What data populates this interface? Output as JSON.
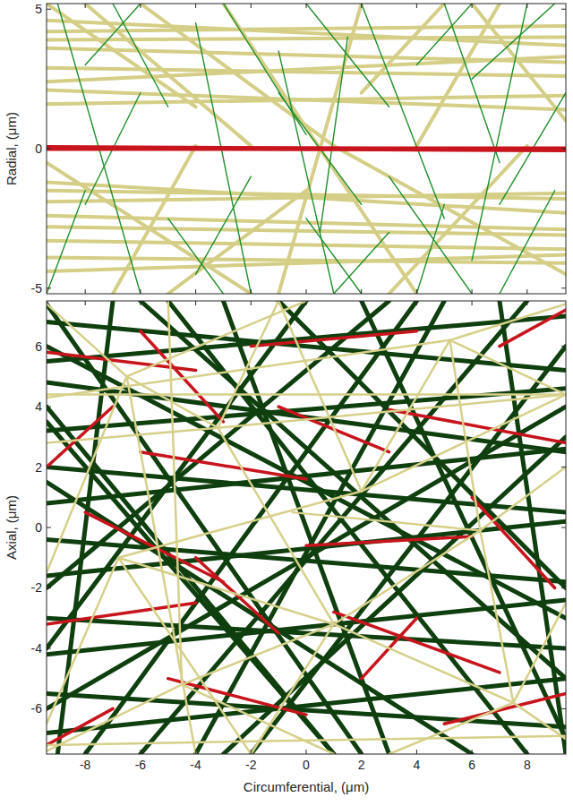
{
  "chart_data": [
    {
      "type": "line",
      "ylabel": "Radial, (μm)",
      "xlim": [
        -9.4,
        9.4
      ],
      "ylim": [
        -5.2,
        5.2
      ],
      "xticks": [
        -8,
        -6,
        -4,
        -2,
        0,
        2,
        4,
        6,
        8
      ],
      "yticks": [
        -5,
        0,
        5
      ],
      "tick_labels": "y",
      "series": [
        {
          "color": "#d4ce86",
          "line_style": "solid",
          "x": [
            -9.4,
            9.4,
            null,
            -9.4,
            9.4,
            null,
            -9.4,
            9.4,
            null,
            -9.4,
            9.4,
            null,
            -9.4,
            9.4,
            null,
            -9.4,
            9.4,
            null,
            -9.4,
            9.4,
            null,
            -9.4,
            9.4,
            null,
            -9.4,
            9.4,
            null,
            -9.4,
            9.4,
            null,
            -9.4,
            9.4,
            null,
            -9.4,
            9.4,
            null,
            -9.4,
            9.4,
            null,
            -9.4,
            9.4,
            null,
            -9.4,
            9.4,
            null,
            -9.4,
            9.4,
            null,
            -9.4,
            -4,
            null,
            -6,
            1,
            null,
            -3,
            4,
            null,
            2,
            -1,
            null,
            6,
            9.4,
            null,
            -9.4,
            -2,
            null,
            1,
            9.4,
            null,
            -7,
            -4,
            null,
            4,
            7,
            null,
            -2,
            -8,
            null,
            3,
            8,
            null,
            -5,
            0,
            null,
            5,
            2
          ],
          "values": [
            4.2,
            4.4,
            null,
            3.9,
            4.0,
            null,
            3.6,
            3.1,
            null,
            2.9,
            2.6,
            null,
            4.6,
            3.7,
            null,
            2.4,
            3.3,
            null,
            1.6,
            1.9,
            null,
            2.1,
            1.4,
            null,
            -1.5,
            -1.8,
            null,
            -1.9,
            -1.6,
            null,
            -2.8,
            -3.1,
            null,
            -3.3,
            -3.6,
            null,
            -3.9,
            -4.1,
            null,
            -2.4,
            -2.9,
            null,
            -4.4,
            -3.8,
            null,
            -1.2,
            -2.3,
            null,
            5.2,
            1.5,
            null,
            5.2,
            0.1,
            null,
            5.2,
            -5.2,
            null,
            5.2,
            -5.2,
            null,
            5.2,
            1.0,
            null,
            -0.5,
            -5.2,
            null,
            0.1,
            -4.5,
            null,
            -5.2,
            0.1,
            null,
            0.1,
            5.2,
            null,
            0.1,
            5.2,
            null,
            -5.2,
            0.1,
            null,
            -5.2,
            -1.5,
            null,
            5.2,
            2.0
          ]
        },
        {
          "color": "#1f8f2a",
          "line_style": "solid",
          "x": [
            -9,
            -6,
            null,
            -7,
            -5,
            null,
            -4,
            -2,
            null,
            -3,
            0,
            null,
            -1,
            1,
            null,
            0,
            3,
            null,
            1.5,
            0.5,
            null,
            2,
            5,
            null,
            3,
            6,
            null,
            4,
            6,
            null,
            5,
            7,
            null,
            6,
            9,
            null,
            7,
            9.4,
            null,
            8,
            6,
            null,
            -8,
            -9.4,
            null,
            -6,
            -8,
            null,
            -5,
            -3,
            null,
            -2,
            -4,
            null,
            0,
            2,
            null,
            3,
            1,
            null,
            5,
            4,
            null,
            9,
            7,
            null,
            -1,
            2,
            null,
            -8,
            -6
          ],
          "values": [
            5.2,
            -5.2,
            null,
            5.2,
            1.5,
            null,
            4.5,
            -5.2,
            null,
            5.2,
            0.5,
            null,
            3.5,
            -5.2,
            null,
            5.2,
            1.5,
            null,
            4.0,
            -3.0,
            null,
            5.2,
            -2.5,
            null,
            -1.0,
            -5.2,
            null,
            3.0,
            5.2,
            null,
            5.2,
            -0.5,
            null,
            2.5,
            5.2,
            null,
            -2.0,
            2.0,
            null,
            5.2,
            -4.0,
            null,
            -1.5,
            -5.2,
            null,
            2.0,
            -2.0,
            null,
            -2.5,
            -5.2,
            null,
            -1.0,
            -4.5,
            null,
            -2.5,
            -5.2,
            null,
            -3.0,
            -5.2,
            null,
            -2.0,
            -5.2,
            null,
            -1.5,
            -5.2,
            null,
            2.0,
            -2.0,
            null,
            3.0,
            5.2
          ]
        },
        {
          "color": "#c8141c",
          "line_style": "solid",
          "x": [
            -9.4,
            9.4,
            null,
            -9.4,
            9.4
          ],
          "values": [
            0,
            0,
            null,
            0.05,
            -0.05
          ]
        }
      ]
    },
    {
      "type": "line",
      "xlabel": "Circumferential, (μm)",
      "ylabel": "Axial, (μm)",
      "xlim": [
        -9.4,
        9.4
      ],
      "ylim": [
        -7.5,
        7.5
      ],
      "xticks": [
        -8,
        -6,
        -4,
        -2,
        0,
        2,
        4,
        6,
        8
      ],
      "yticks": [
        -6,
        -4,
        -2,
        0,
        2,
        4,
        6
      ],
      "tick_labels": true,
      "series": [
        {
          "color": "#0f3f0f",
          "line_style": "solid",
          "x": [
            -9.4,
            9.4,
            null,
            -9.4,
            9.4,
            null,
            -9.4,
            9.4,
            null,
            -9.4,
            9.4,
            null,
            -9.4,
            9.4,
            null,
            -9.4,
            9.4,
            null,
            -9.4,
            9.4,
            null,
            -9.4,
            9.4,
            null,
            -9.4,
            9.4,
            null,
            -9.4,
            9.4,
            null,
            -9.4,
            9.4,
            null,
            -9.4,
            9.4,
            null,
            -9.4,
            2,
            null,
            -6,
            9.4,
            null,
            -9.4,
            3,
            null,
            -2,
            9.4,
            null,
            -8,
            4,
            null,
            0,
            -9.4,
            null,
            5,
            -4,
            null,
            9.4,
            -3,
            null,
            -9.4,
            6,
            null,
            -5,
            8,
            null,
            7,
            9.4,
            null,
            -7,
            -9,
            null,
            1,
            -9.4,
            null,
            9.4,
            -1,
            null,
            -3,
            3,
            null,
            -9.4,
            9.4,
            null,
            -9.4,
            9.4,
            null,
            -6,
            8,
            null,
            2,
            9.4,
            null,
            -9.4,
            1
          ],
          "values": [
            6.8,
            5.2,
            null,
            5.5,
            7.0,
            null,
            4.8,
            2.5,
            null,
            3.2,
            4.6,
            null,
            2.0,
            0.5,
            null,
            0.8,
            2.6,
            null,
            -0.4,
            -1.8,
            null,
            -1.6,
            0.2,
            null,
            -3.0,
            -4.0,
            null,
            -4.2,
            -2.4,
            null,
            -5.5,
            -6.6,
            null,
            -6.8,
            -5.0,
            null,
            7.4,
            -7.5,
            null,
            7.5,
            -5,
            null,
            -2,
            7.5,
            null,
            -7.5,
            6,
            null,
            -7.5,
            7.5,
            null,
            7.5,
            -4,
            null,
            7.5,
            -7.5,
            null,
            3,
            -7.5,
            null,
            1.5,
            -7.5,
            null,
            7.5,
            -7.5,
            null,
            7.5,
            -7.5,
            null,
            7.5,
            -7.5,
            null,
            -7.5,
            3.5,
            null,
            -2,
            7.5,
            null,
            7.5,
            -7.5,
            null,
            6,
            -3,
            null,
            -6,
            4,
            null,
            -7.5,
            7.5,
            null,
            7.5,
            -7,
            null,
            4,
            -7.5
          ]
        },
        {
          "color": "#c8141c",
          "line_style": "solid",
          "x": [
            -9.4,
            -4,
            null,
            -6,
            0,
            null,
            -2,
            4,
            null,
            3,
            9.4,
            null,
            -8,
            -3,
            null,
            0,
            6,
            null,
            -9.4,
            -4,
            null,
            1,
            7,
            null,
            -5,
            0,
            null,
            5,
            9.4,
            null,
            -7,
            -9.4,
            null,
            6,
            9,
            null,
            -1,
            3,
            null,
            -4,
            -1,
            null,
            7,
            9.4,
            null,
            -9.4,
            -7,
            null,
            2,
            4,
            null,
            -3,
            -6
          ],
          "values": [
            5.8,
            5.2,
            null,
            2.5,
            1.6,
            null,
            6.0,
            6.5,
            null,
            3.9,
            2.8,
            null,
            0.5,
            -1.8,
            null,
            -0.6,
            -0.3,
            null,
            -3.2,
            -2.5,
            null,
            -2.8,
            -4.8,
            null,
            -5.0,
            -6.2,
            null,
            -6.5,
            -5.5,
            null,
            -6.0,
            -7.2,
            null,
            1.0,
            -2.0,
            null,
            4.0,
            2.5,
            null,
            -1.0,
            -3.5,
            null,
            6.0,
            7.2,
            null,
            2.0,
            4.0,
            null,
            -5.0,
            -3.0,
            null,
            3.5,
            6.5
          ]
        },
        {
          "color": "#d6d08a",
          "line_style": "solid",
          "x": [
            -9.4,
            -6.5,
            null,
            -6.5,
            -3.2,
            null,
            -6.5,
            -9.4,
            null,
            -6.5,
            0,
            null,
            -6.5,
            -4,
            null,
            -3.2,
            1.0,
            null,
            -3.2,
            9.4,
            null,
            -3.2,
            -9.4,
            null,
            -3.2,
            -1,
            null,
            1.0,
            -4.5,
            null,
            1.0,
            7.5,
            null,
            1.0,
            6.3,
            null,
            1.0,
            -2,
            null,
            1.0,
            -6.8,
            null,
            -6.8,
            -9.4,
            null,
            -6.8,
            -2,
            null,
            -6.8,
            2.0,
            null,
            5.2,
            9.4,
            null,
            5.2,
            6.3,
            null,
            5.2,
            -9.4,
            null,
            5.2,
            2.0,
            null,
            5.2,
            9.4,
            null,
            6.3,
            9.4,
            null,
            6.3,
            7.5,
            null,
            6.3,
            -0.5,
            null,
            7.5,
            9.4,
            null,
            7.5,
            3,
            null,
            7.5,
            9.4,
            null,
            -4.5,
            -9.4,
            null,
            -4.5,
            -5,
            null,
            -4.5,
            1,
            null,
            2.0,
            -1,
            null,
            2.0,
            9.4,
            null,
            -9.4,
            9.4,
            null,
            -9.4,
            9.4
          ],
          "values": [
            7.4,
            5.0,
            null,
            5.0,
            3.3,
            null,
            5.0,
            -1.5,
            null,
            5.0,
            7.5,
            null,
            5.0,
            -7.5,
            null,
            3.3,
            -3.2,
            null,
            3.3,
            4.4,
            null,
            3.3,
            2.8,
            null,
            3.3,
            7.5,
            null,
            -3.2,
            -5.2,
            null,
            -3.2,
            -5.8,
            null,
            -3.2,
            -0.1,
            null,
            -3.2,
            -7.5,
            null,
            -3.2,
            -1.0,
            null,
            -1.0,
            -6.5,
            null,
            -1.0,
            -7.5,
            null,
            -1.0,
            1.2,
            null,
            6.2,
            7.4,
            null,
            6.2,
            -0.1,
            null,
            6.2,
            4.3,
            null,
            6.2,
            1.2,
            null,
            6.2,
            4.4,
            null,
            -0.1,
            2.0,
            null,
            -0.1,
            -5.8,
            null,
            -0.1,
            0.5,
            null,
            -5.8,
            -7.0,
            null,
            -5.8,
            -7.5,
            null,
            -5.8,
            -2.5,
            null,
            -5.2,
            -7.4,
            null,
            -5.2,
            7.5,
            null,
            -5.2,
            -7.5,
            null,
            1.2,
            7.5,
            null,
            1.2,
            4.4,
            null,
            4.4,
            4.4,
            null,
            -7.2,
            -6.9
          ]
        }
      ]
    }
  ]
}
